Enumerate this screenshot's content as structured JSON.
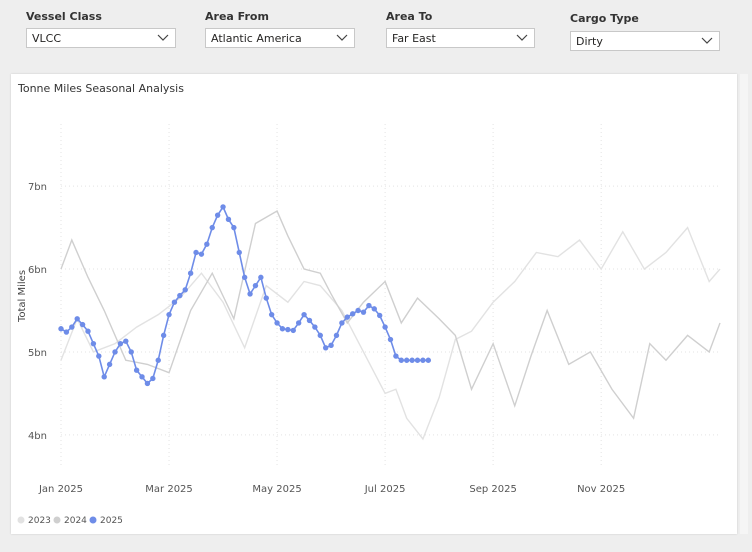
{
  "filters": [
    {
      "label": "Vessel Class",
      "value": "VLCC"
    },
    {
      "label": "Area From",
      "value": "Atlantic America"
    },
    {
      "label": "Area To",
      "value": "Far East"
    },
    {
      "label": "Cargo Type",
      "value": "Dirty"
    }
  ],
  "chart": {
    "title": "Tonne Miles Seasonal Analysis"
  },
  "chart_data": {
    "type": "line",
    "title": "Tonne Miles Seasonal Analysis",
    "xlabel": "",
    "ylabel": "Total Miles",
    "x_ticks": [
      "Jan 2025",
      "Mar 2025",
      "May 2025",
      "Jul 2025",
      "Sep 2025",
      "Nov 2025"
    ],
    "y_ticks": [
      "4bn",
      "5bn",
      "6bn",
      "7bn"
    ],
    "y_tick_values": [
      4,
      5,
      6,
      7
    ],
    "ylim": [
      3.6,
      7.75
    ],
    "xlim": [
      0,
      12.2
    ],
    "grid": true,
    "legend_position": "bottom-left",
    "series": [
      {
        "name": "2023",
        "color": "#e2e2e2",
        "x": [
          0,
          0.3,
          0.6,
          1.0,
          1.4,
          1.8,
          2.2,
          2.6,
          3.0,
          3.4,
          3.8,
          4.2,
          4.5,
          4.8,
          5.2,
          5.6,
          6.0,
          6.2,
          6.4,
          6.7,
          7.0,
          7.3,
          7.6,
          8.0,
          8.4,
          8.8,
          9.2,
          9.6,
          10.0,
          10.4,
          10.8,
          11.2,
          11.6,
          12.0,
          12.2
        ],
        "y": [
          4.9,
          5.4,
          5.0,
          5.1,
          5.3,
          5.45,
          5.65,
          5.95,
          5.6,
          5.05,
          5.8,
          5.6,
          5.85,
          5.8,
          5.5,
          5.0,
          4.5,
          4.55,
          4.2,
          3.95,
          4.45,
          5.15,
          5.25,
          5.6,
          5.85,
          6.2,
          6.15,
          6.35,
          6.0,
          6.45,
          6.0,
          6.2,
          6.5,
          5.85,
          6.0
        ]
      },
      {
        "name": "2024",
        "color": "#cfcfcf",
        "x": [
          0,
          0.2,
          0.5,
          0.8,
          1.2,
          1.6,
          2.0,
          2.4,
          2.8,
          3.2,
          3.6,
          4.0,
          4.2,
          4.5,
          4.8,
          5.0,
          5.3,
          5.6,
          6.0,
          6.3,
          6.6,
          7.0,
          7.3,
          7.6,
          8.0,
          8.4,
          8.7,
          9.0,
          9.4,
          9.8,
          10.2,
          10.6,
          10.9,
          11.2,
          11.6,
          12.0,
          12.2
        ],
        "y": [
          6.0,
          6.35,
          5.9,
          5.5,
          4.9,
          4.85,
          4.75,
          5.5,
          5.95,
          5.4,
          6.55,
          6.7,
          6.4,
          6.0,
          5.95,
          5.7,
          5.35,
          5.6,
          5.85,
          5.35,
          5.65,
          5.4,
          5.2,
          4.55,
          5.1,
          4.35,
          4.95,
          5.5,
          4.85,
          5.0,
          4.55,
          4.2,
          5.1,
          4.9,
          5.2,
          5.0,
          5.35
        ]
      },
      {
        "name": "2025",
        "color": "#6e8ce8",
        "x": [
          0.0,
          0.1,
          0.2,
          0.3,
          0.4,
          0.5,
          0.6,
          0.7,
          0.8,
          0.9,
          1.0,
          1.1,
          1.2,
          1.3,
          1.4,
          1.5,
          1.6,
          1.7,
          1.8,
          1.9,
          2.0,
          2.1,
          2.2,
          2.3,
          2.4,
          2.5,
          2.6,
          2.7,
          2.8,
          2.9,
          3.0,
          3.1,
          3.2,
          3.3,
          3.4,
          3.5,
          3.6,
          3.7,
          3.8,
          3.9,
          4.0,
          4.1,
          4.2,
          4.3,
          4.4,
          4.5,
          4.6,
          4.7,
          4.8,
          4.9,
          5.0,
          5.1,
          5.2,
          5.3,
          5.4,
          5.5,
          5.6,
          5.7,
          5.8,
          5.9,
          6.0,
          6.1,
          6.2,
          6.3,
          6.4,
          6.5,
          6.6,
          6.7,
          6.8
        ],
        "y": [
          5.28,
          5.24,
          5.3,
          5.4,
          5.33,
          5.25,
          5.1,
          4.95,
          4.7,
          4.85,
          5.0,
          5.1,
          5.13,
          5.0,
          4.78,
          4.7,
          4.62,
          4.68,
          4.9,
          5.2,
          5.45,
          5.6,
          5.68,
          5.75,
          5.95,
          6.2,
          6.18,
          6.3,
          6.5,
          6.65,
          6.75,
          6.6,
          6.5,
          6.2,
          5.9,
          5.7,
          5.8,
          5.9,
          5.65,
          5.45,
          5.35,
          5.28,
          5.27,
          5.26,
          5.35,
          5.45,
          5.38,
          5.3,
          5.2,
          5.05,
          5.08,
          5.2,
          5.35,
          5.42,
          5.46,
          5.5,
          5.48,
          5.56,
          5.52,
          5.44,
          5.3,
          5.15,
          4.95,
          4.9,
          4.9,
          4.9,
          4.9,
          4.9,
          4.9
        ]
      }
    ]
  }
}
